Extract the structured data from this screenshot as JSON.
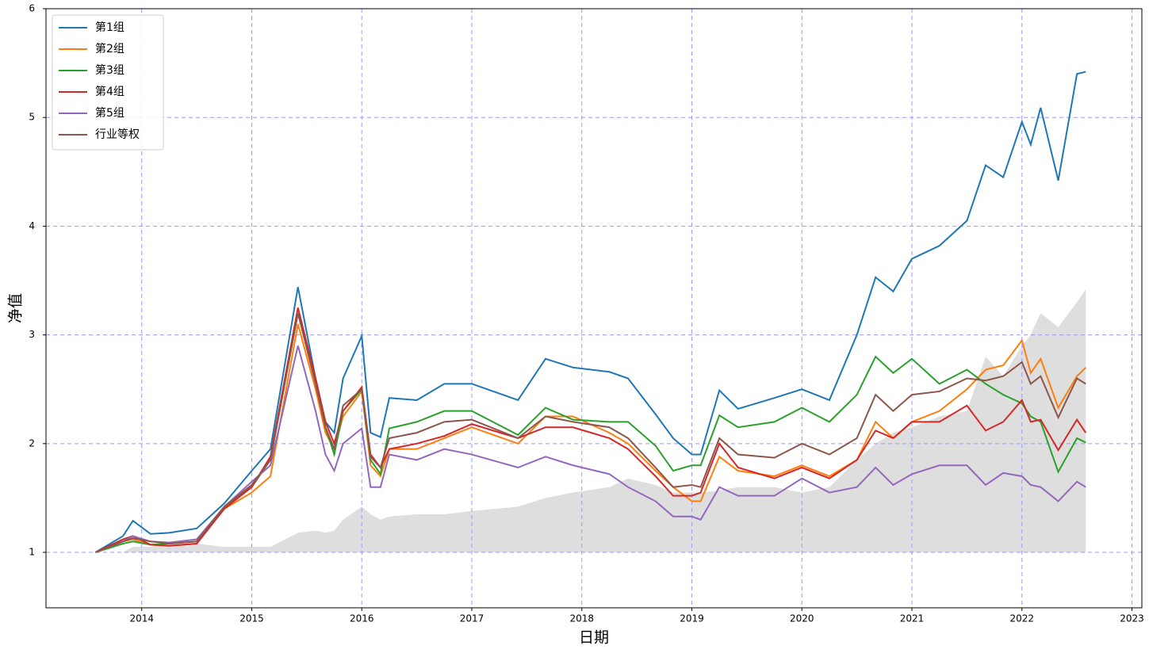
{
  "chart_data": {
    "type": "line",
    "x": [
      2013.58,
      2013.83,
      2013.92,
      2014.08,
      2014.25,
      2014.5,
      2014.75,
      2015.0,
      2015.17,
      2015.42,
      2015.58,
      2015.67,
      2015.75,
      2015.83,
      2016.0,
      2016.08,
      2016.17,
      2016.25,
      2016.5,
      2016.75,
      2017.0,
      2017.42,
      2017.67,
      2017.92,
      2018.25,
      2018.42,
      2018.67,
      2018.83,
      2019.0,
      2019.08,
      2019.25,
      2019.42,
      2019.75,
      2020.0,
      2020.25,
      2020.5,
      2020.67,
      2020.83,
      2021.0,
      2021.25,
      2021.5,
      2021.67,
      2021.83,
      2022.0,
      2022.08,
      2022.17,
      2022.33,
      2022.5,
      2022.58
    ],
    "series": [
      {
        "name": "第1组",
        "color": "#1f77b4",
        "values": [
          1.0,
          1.15,
          1.29,
          1.17,
          1.18,
          1.22,
          1.45,
          1.75,
          1.95,
          3.44,
          2.6,
          2.2,
          2.1,
          2.6,
          2.99,
          2.1,
          2.06,
          2.42,
          2.4,
          2.55,
          2.55,
          2.4,
          2.78,
          2.7,
          2.66,
          2.6,
          2.27,
          2.05,
          1.9,
          1.9,
          2.49,
          2.32,
          2.42,
          2.5,
          2.4,
          3.0,
          3.53,
          3.4,
          3.7,
          3.82,
          4.05,
          4.56,
          4.45,
          4.96,
          4.75,
          5.09,
          4.42,
          5.4,
          5.42
        ]
      },
      {
        "name": "第2组",
        "color": "#ff7f0e",
        "values": [
          1.0,
          1.1,
          1.12,
          1.07,
          1.06,
          1.08,
          1.4,
          1.55,
          1.7,
          3.1,
          2.5,
          2.1,
          1.95,
          2.25,
          2.48,
          1.8,
          1.7,
          1.95,
          1.95,
          2.05,
          2.15,
          2.0,
          2.25,
          2.25,
          2.1,
          2.0,
          1.75,
          1.6,
          1.47,
          1.47,
          1.88,
          1.75,
          1.7,
          1.8,
          1.7,
          1.85,
          2.2,
          2.05,
          2.2,
          2.3,
          2.5,
          2.68,
          2.72,
          2.95,
          2.65,
          2.78,
          2.33,
          2.62,
          2.7
        ]
      },
      {
        "name": "第3组",
        "color": "#2ca02c",
        "values": [
          1.0,
          1.08,
          1.1,
          1.07,
          1.08,
          1.1,
          1.42,
          1.6,
          1.85,
          3.2,
          2.6,
          2.15,
          1.9,
          2.3,
          2.5,
          1.85,
          1.72,
          2.14,
          2.2,
          2.3,
          2.3,
          2.08,
          2.33,
          2.22,
          2.2,
          2.2,
          1.98,
          1.75,
          1.8,
          1.8,
          2.26,
          2.15,
          2.2,
          2.33,
          2.2,
          2.45,
          2.8,
          2.65,
          2.78,
          2.55,
          2.68,
          2.55,
          2.45,
          2.37,
          2.25,
          2.2,
          1.74,
          2.05,
          2.01
        ]
      },
      {
        "name": "第4组",
        "color": "#d62728",
        "values": [
          1.0,
          1.12,
          1.15,
          1.07,
          1.06,
          1.08,
          1.4,
          1.6,
          1.88,
          3.25,
          2.6,
          2.2,
          2.0,
          2.3,
          2.52,
          1.9,
          1.78,
          1.95,
          2.0,
          2.07,
          2.18,
          2.05,
          2.15,
          2.15,
          2.05,
          1.95,
          1.7,
          1.52,
          1.52,
          1.55,
          2.0,
          1.78,
          1.68,
          1.78,
          1.68,
          1.85,
          2.12,
          2.05,
          2.2,
          2.2,
          2.35,
          2.12,
          2.2,
          2.4,
          2.2,
          2.22,
          1.94,
          2.22,
          2.1
        ]
      },
      {
        "name": "第5组",
        "color": "#9467bd",
        "values": [
          1.0,
          1.1,
          1.15,
          1.1,
          1.09,
          1.12,
          1.42,
          1.65,
          1.8,
          2.9,
          2.3,
          1.9,
          1.75,
          2.0,
          2.14,
          1.6,
          1.6,
          1.9,
          1.85,
          1.95,
          1.9,
          1.78,
          1.88,
          1.8,
          1.72,
          1.6,
          1.47,
          1.33,
          1.33,
          1.3,
          1.6,
          1.52,
          1.52,
          1.68,
          1.55,
          1.6,
          1.78,
          1.62,
          1.72,
          1.8,
          1.8,
          1.62,
          1.73,
          1.7,
          1.62,
          1.6,
          1.47,
          1.65,
          1.6
        ]
      },
      {
        "name": "行业等权",
        "color": "#8c564b",
        "values": [
          1.0,
          1.1,
          1.13,
          1.1,
          1.08,
          1.1,
          1.42,
          1.62,
          1.85,
          3.2,
          2.55,
          2.15,
          1.95,
          2.35,
          2.5,
          1.88,
          1.78,
          2.05,
          2.1,
          2.2,
          2.22,
          2.05,
          2.25,
          2.2,
          2.15,
          2.05,
          1.78,
          1.6,
          1.62,
          1.6,
          2.05,
          1.9,
          1.87,
          2.0,
          1.9,
          2.05,
          2.45,
          2.3,
          2.45,
          2.48,
          2.6,
          2.58,
          2.62,
          2.75,
          2.55,
          2.62,
          2.24,
          2.6,
          2.55
        ]
      }
    ],
    "area": {
      "color": "#dedede",
      "base": 1,
      "values": [
        1.0,
        1.0,
        1.05,
        1.05,
        1.08,
        1.08,
        1.05,
        1.05,
        1.05,
        1.18,
        1.2,
        1.18,
        1.2,
        1.3,
        1.42,
        1.35,
        1.3,
        1.33,
        1.35,
        1.35,
        1.38,
        1.42,
        1.5,
        1.55,
        1.6,
        1.68,
        1.62,
        1.55,
        1.55,
        1.55,
        1.57,
        1.6,
        1.6,
        1.55,
        1.6,
        1.85,
        2.0,
        2.1,
        2.15,
        2.25,
        2.3,
        2.8,
        2.62,
        2.9,
        3.0,
        3.2,
        3.07,
        3.3,
        3.42
      ]
    },
    "xlabel": "日期",
    "ylabel": "净值",
    "xlim": [
      2013.13,
      2023.09
    ],
    "xticks": [
      2014,
      2015,
      2016,
      2017,
      2018,
      2019,
      2020,
      2021,
      2022,
      2023
    ],
    "ylim": [
      0.49,
      6
    ],
    "yticks": [
      1,
      2,
      3,
      4,
      5,
      6
    ],
    "grid": true,
    "legend": "upper left"
  }
}
